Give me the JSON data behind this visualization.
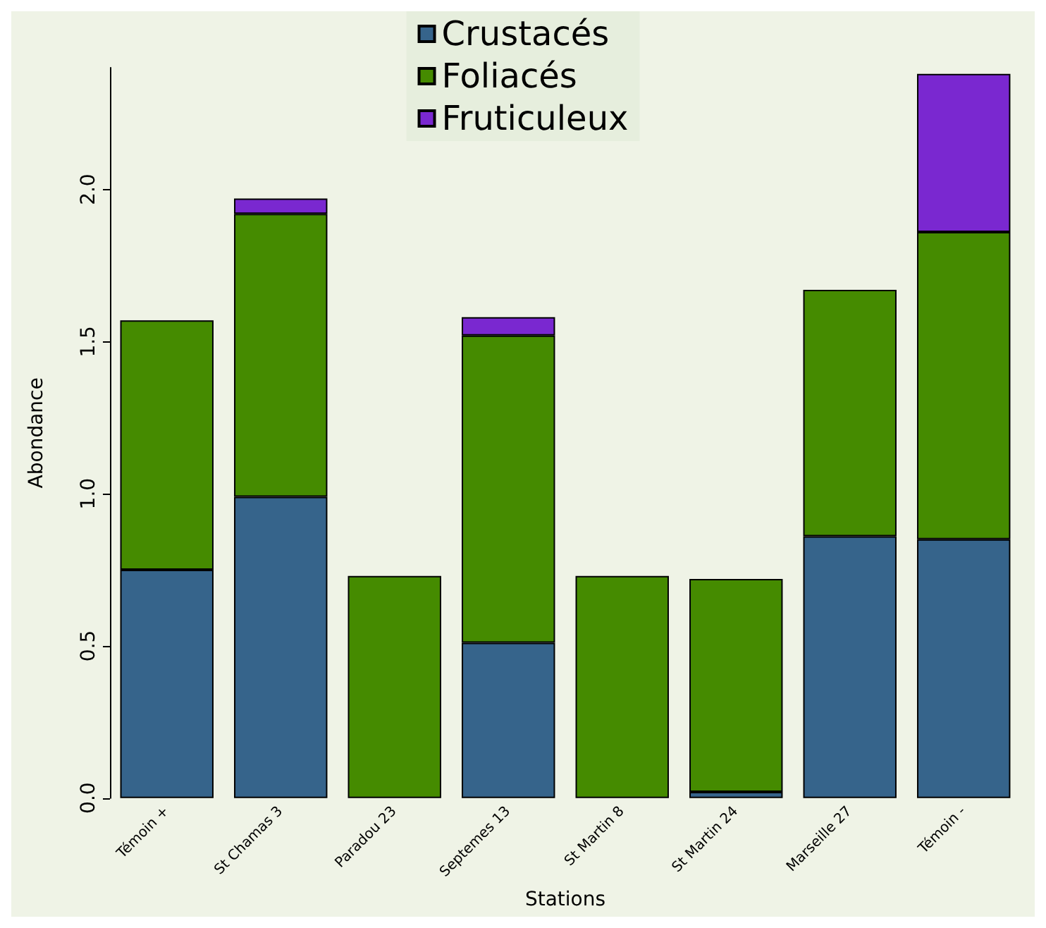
{
  "chart_data": {
    "type": "bar",
    "stacked": true,
    "xlabel": "Stations",
    "ylabel": "Abondance",
    "categories": [
      "Témoin +",
      "St Chamas 3",
      "Paradou 23",
      "Septemes 13",
      "St Martin 8",
      "St Martin 24",
      "Marseille 27",
      "Témoin -"
    ],
    "series": [
      {
        "name": "Crustacés",
        "color": "#36648b",
        "values": [
          0.75,
          0.99,
          0,
          0.51,
          0,
          0.02,
          0.86,
          0.85
        ]
      },
      {
        "name": "Foliacés",
        "color": "#458b00",
        "values": [
          0.82,
          0.93,
          0.73,
          1.01,
          0.73,
          0.7,
          0.81,
          1.01
        ]
      },
      {
        "name": "Fruticuleux",
        "color": "#7a28d0",
        "values": [
          0,
          0.05,
          0,
          0.06,
          0,
          0,
          0,
          0.52
        ]
      }
    ],
    "ylim": [
      0,
      2.4
    ],
    "yticks": [
      {
        "value": 0,
        "label": "0.0"
      },
      {
        "value": 0.5,
        "label": "0.5"
      },
      {
        "value": 1,
        "label": "1.0"
      },
      {
        "value": 1.5,
        "label": "1.5"
      },
      {
        "value": 2,
        "label": "2.0"
      }
    ],
    "grid": false,
    "legend": "top"
  }
}
